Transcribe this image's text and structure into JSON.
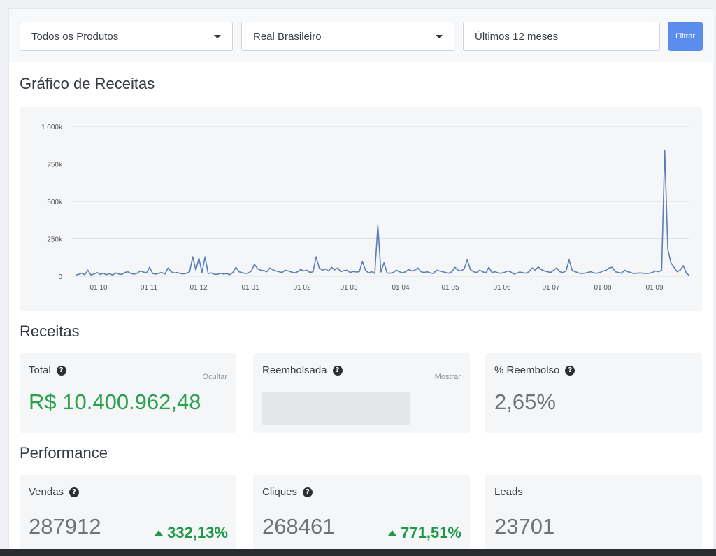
{
  "filters": {
    "product": "Todos os Produtos",
    "currency": "Real Brasileiro",
    "period": "Últimos 12 meses",
    "button": "Filtrar"
  },
  "chart_section": {
    "title": "Gráfico de Receitas"
  },
  "chart_data": {
    "type": "line",
    "y_ticks": [
      "1 000k",
      "750k",
      "500k",
      "250k",
      "0"
    ],
    "x_ticks": [
      "01 10",
      "01 11",
      "01 12",
      "01 01",
      "01 02",
      "01 03",
      "01 04",
      "01 05",
      "01 06",
      "01 07",
      "01 08",
      "01 09"
    ],
    "ylim": [
      0,
      1000
    ],
    "grid": true,
    "color": "#5a7eb5",
    "series": [
      {
        "values": [
          8,
          12,
          20,
          10,
          40,
          8,
          15,
          25,
          12,
          20,
          10,
          18,
          8,
          22,
          15,
          12,
          25,
          30,
          18,
          14,
          20,
          35,
          28,
          22,
          60,
          18,
          14,
          20,
          25,
          15,
          55,
          30,
          22,
          25,
          18,
          16,
          20,
          30,
          130,
          40,
          120,
          25,
          130,
          18,
          22,
          14,
          12,
          20,
          15,
          18,
          10,
          25,
          60,
          30,
          24,
          18,
          22,
          35,
          80,
          50,
          40,
          38,
          30,
          55,
          42,
          35,
          30,
          25,
          40,
          35,
          28,
          22,
          30,
          45,
          35,
          40,
          25,
          30,
          130,
          55,
          40,
          48,
          35,
          60,
          42,
          55,
          30,
          38,
          40,
          25,
          32,
          28,
          30,
          100,
          40,
          22,
          30,
          18,
          340,
          28,
          90,
          22,
          20,
          25,
          40,
          30,
          22,
          30,
          45,
          35,
          40,
          55,
          30,
          25,
          30,
          22,
          18,
          40,
          35,
          30,
          25,
          20,
          30,
          60,
          40,
          35,
          50,
          110,
          45,
          30,
          25,
          40,
          30,
          22,
          60,
          25,
          30,
          22,
          20,
          25,
          35,
          30,
          15,
          20,
          28,
          24,
          20,
          30,
          55,
          40,
          62,
          45,
          35,
          30,
          25,
          40,
          55,
          30,
          25,
          35,
          110,
          40,
          30,
          22,
          18,
          20,
          25,
          30,
          22,
          20,
          25,
          35,
          40,
          55,
          60,
          30,
          25,
          20,
          40,
          30,
          25,
          18,
          20,
          22,
          20,
          18,
          20,
          25,
          35,
          30,
          40,
          840,
          180,
          90,
          60,
          30,
          40,
          70,
          20,
          5
        ]
      }
    ]
  },
  "receitas": {
    "title": "Receitas",
    "cards": [
      {
        "label": "Total",
        "link": "Ocultar",
        "value": "R$ 10.400.962,48"
      },
      {
        "label": "Reembolsada",
        "link": "Mostrar"
      },
      {
        "label": "% Reembolso",
        "value": "2,65%"
      }
    ]
  },
  "performance": {
    "title": "Performance",
    "cards": [
      {
        "label": "Vendas",
        "value": "287912",
        "trend": "332,13%"
      },
      {
        "label": "Cliques",
        "value": "268461",
        "trend": "771,51%"
      },
      {
        "label": "Leads",
        "value": "23701"
      }
    ]
  },
  "icons": {
    "help": "?"
  }
}
